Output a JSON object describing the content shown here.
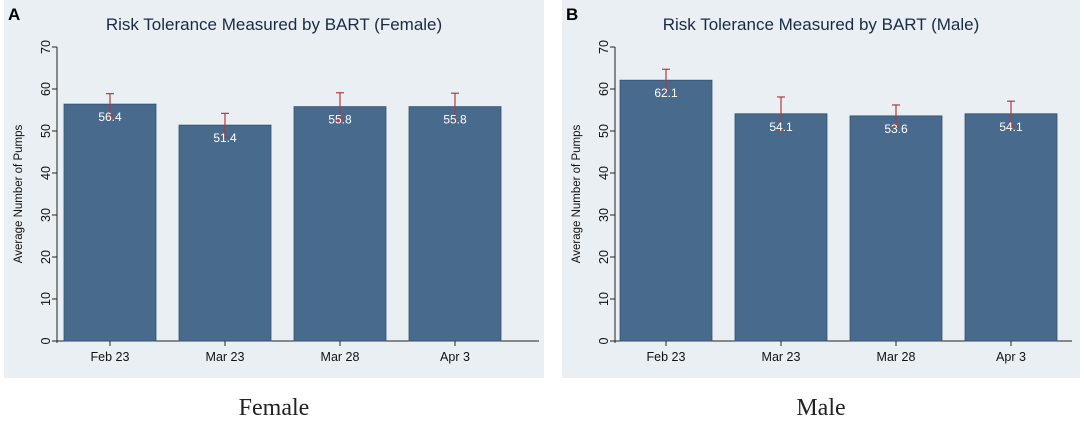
{
  "chart_data": [
    {
      "type": "bar",
      "panel": "A",
      "title": "Risk Tolerance Measured by BART (Female)",
      "ylabel": "Average Number of Pumps",
      "xlabel": "",
      "categories": [
        "Feb 23",
        "Mar 23",
        "Mar 28",
        "Apr 3"
      ],
      "values": [
        56.4,
        51.4,
        55.8,
        55.8
      ],
      "value_labels": [
        "56.4",
        "51.4",
        "55.8",
        "55.8"
      ],
      "error_low": [
        53.5,
        48.5,
        52.5,
        52.7
      ],
      "error_high": [
        58.9,
        54.2,
        59.1,
        59.0
      ],
      "ylim": [
        0,
        70
      ],
      "yticks": [
        0,
        10,
        20,
        30,
        40,
        50,
        60,
        70
      ],
      "grid": false,
      "caption": "Female"
    },
    {
      "type": "bar",
      "panel": "B",
      "title": "Risk Tolerance Measured by BART (Male)",
      "ylabel": "Average Number of Pumps",
      "xlabel": "",
      "categories": [
        "Feb 23",
        "Mar 23",
        "Mar 28",
        "Apr 3"
      ],
      "values": [
        62.1,
        54.1,
        53.6,
        54.1
      ],
      "value_labels": [
        "62.1",
        "54.1",
        "53.6",
        "54.1"
      ],
      "error_low": [
        59.5,
        50.2,
        51.1,
        51.1
      ],
      "error_high": [
        64.7,
        58.1,
        56.2,
        57.1
      ],
      "ylim": [
        0,
        70
      ],
      "yticks": [
        0,
        10,
        20,
        30,
        40,
        50,
        60,
        70
      ],
      "grid": false,
      "caption": "Male"
    }
  ],
  "colors": {
    "panel_bg": "#e9eff3",
    "bar": "#476a8d",
    "bar_edge": "#34516e",
    "error": "#b03c3c",
    "axis": "#222222"
  }
}
